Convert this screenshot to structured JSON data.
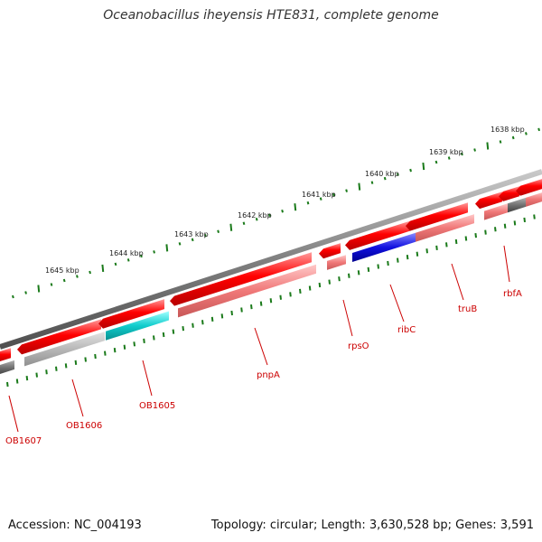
{
  "title": "Oceanobacillus iheyensis HTE831, complete genome",
  "footer": {
    "accession": "Accession: NC_004193",
    "summary": "Topology: circular; Length: 3,630,528 bp; Genes: 3,591"
  },
  "scale_labels": [
    "1638 kbp",
    "1639 kbp",
    "1640 kbp",
    "1641 kbp",
    "1642 kbp",
    "1643 kbp",
    "1644 kbp",
    "1645 kbp"
  ],
  "gene_labels": [
    "OB1607",
    "OB1606",
    "OB1605",
    "pnpA",
    "rpsO",
    "ribC",
    "truB",
    "rbfA"
  ],
  "colors": {
    "backbone": "#808080",
    "gene_red": "#ff0000",
    "gene_light_red": "#f07878",
    "gene_cyan": "#10cccc",
    "gene_blue": "#1010e0",
    "gene_gray": "#707070",
    "gene_light_gray": "#b8b8b8",
    "tick_green": "#1a7a1a",
    "label_red": "#cc0000"
  }
}
